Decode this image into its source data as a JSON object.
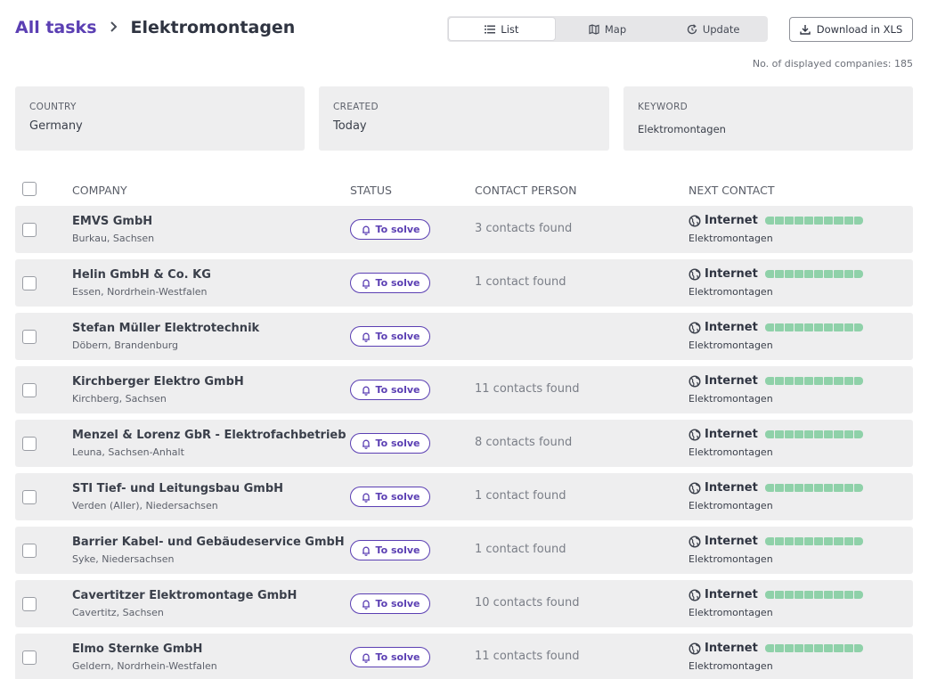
{
  "breadcrumb": {
    "root": "All tasks",
    "current": "Elektromontagen"
  },
  "view_toggle": {
    "list": "List",
    "map": "Map",
    "update": "Update"
  },
  "download_label": "Download in XLS",
  "count_text": "No. of displayed companies: 185",
  "filters": [
    {
      "label": "COUNTRY",
      "value": "Germany"
    },
    {
      "label": "CREATED",
      "value": "Today"
    },
    {
      "label": "KEYWORD",
      "value": "Elektromontagen"
    }
  ],
  "table": {
    "headers": {
      "company": "COMPANY",
      "status": "STATUS",
      "contact_person": "CONTACT PERSON",
      "next_contact": "NEXT CONTACT"
    },
    "rows": [
      {
        "name": "EMVS GmbH",
        "location": "Burkau, Sachsen",
        "status": "To solve",
        "contacts": "3 contacts found",
        "next_contact": "Internet",
        "next_contact_sub": "Elektromontagen",
        "progress": 1.0
      },
      {
        "name": "Helin GmbH & Co. KG",
        "location": "Essen, Nordrhein-Westfalen",
        "status": "To solve",
        "contacts": "1 contact found",
        "next_contact": "Internet",
        "next_contact_sub": "Elektromontagen",
        "progress": 1.0
      },
      {
        "name": "Stefan Müller Elektrotechnik",
        "location": "Döbern, Brandenburg",
        "status": "To solve",
        "contacts": "",
        "next_contact": "Internet",
        "next_contact_sub": "Elektromontagen",
        "progress": 1.0
      },
      {
        "name": "Kirchberger Elektro GmbH",
        "location": "Kirchberg, Sachsen",
        "status": "To solve",
        "contacts": "11 contacts found",
        "next_contact": "Internet",
        "next_contact_sub": "Elektromontagen",
        "progress": 1.0
      },
      {
        "name": "Menzel & Lorenz GbR - Elektrofachbetrieb",
        "location": "Leuna, Sachsen-Anhalt",
        "status": "To solve",
        "contacts": "8 contacts found",
        "next_contact": "Internet",
        "next_contact_sub": "Elektromontagen",
        "progress": 1.0
      },
      {
        "name": "STI Tief- und Leitungsbau GmbH",
        "location": "Verden (Aller), Niedersachsen",
        "status": "To solve",
        "contacts": "1 contact found",
        "next_contact": "Internet",
        "next_contact_sub": "Elektromontagen",
        "progress": 1.0
      },
      {
        "name": "Barrier Kabel- und Gebäudeservice GmbH",
        "location": "Syke, Niedersachsen",
        "status": "To solve",
        "contacts": "1 contact found",
        "next_contact": "Internet",
        "next_contact_sub": "Elektromontagen",
        "progress": 1.0
      },
      {
        "name": "Cavertitzer Elektromontage GmbH",
        "location": "Cavertitz, Sachsen",
        "status": "To solve",
        "contacts": "10 contacts found",
        "next_contact": "Internet",
        "next_contact_sub": "Elektromontagen",
        "progress": 1.0
      },
      {
        "name": "Elmo Sternke GmbH",
        "location": "Geldern, Nordrhein-Westfalen",
        "status": "To solve",
        "contacts": "11 contacts found",
        "next_contact": "Internet",
        "next_contact_sub": "Elektromontagen",
        "progress": 1.0
      }
    ]
  },
  "colors": {
    "accent": "#5b3fb3",
    "progress": "#8fd1a9",
    "row_bg": "#eeeeef"
  },
  "icons": {
    "list": "list-icon",
    "map": "map-icon",
    "update": "refresh-icon",
    "download": "download-icon",
    "status": "bell-icon",
    "channel": "globe-icon"
  }
}
